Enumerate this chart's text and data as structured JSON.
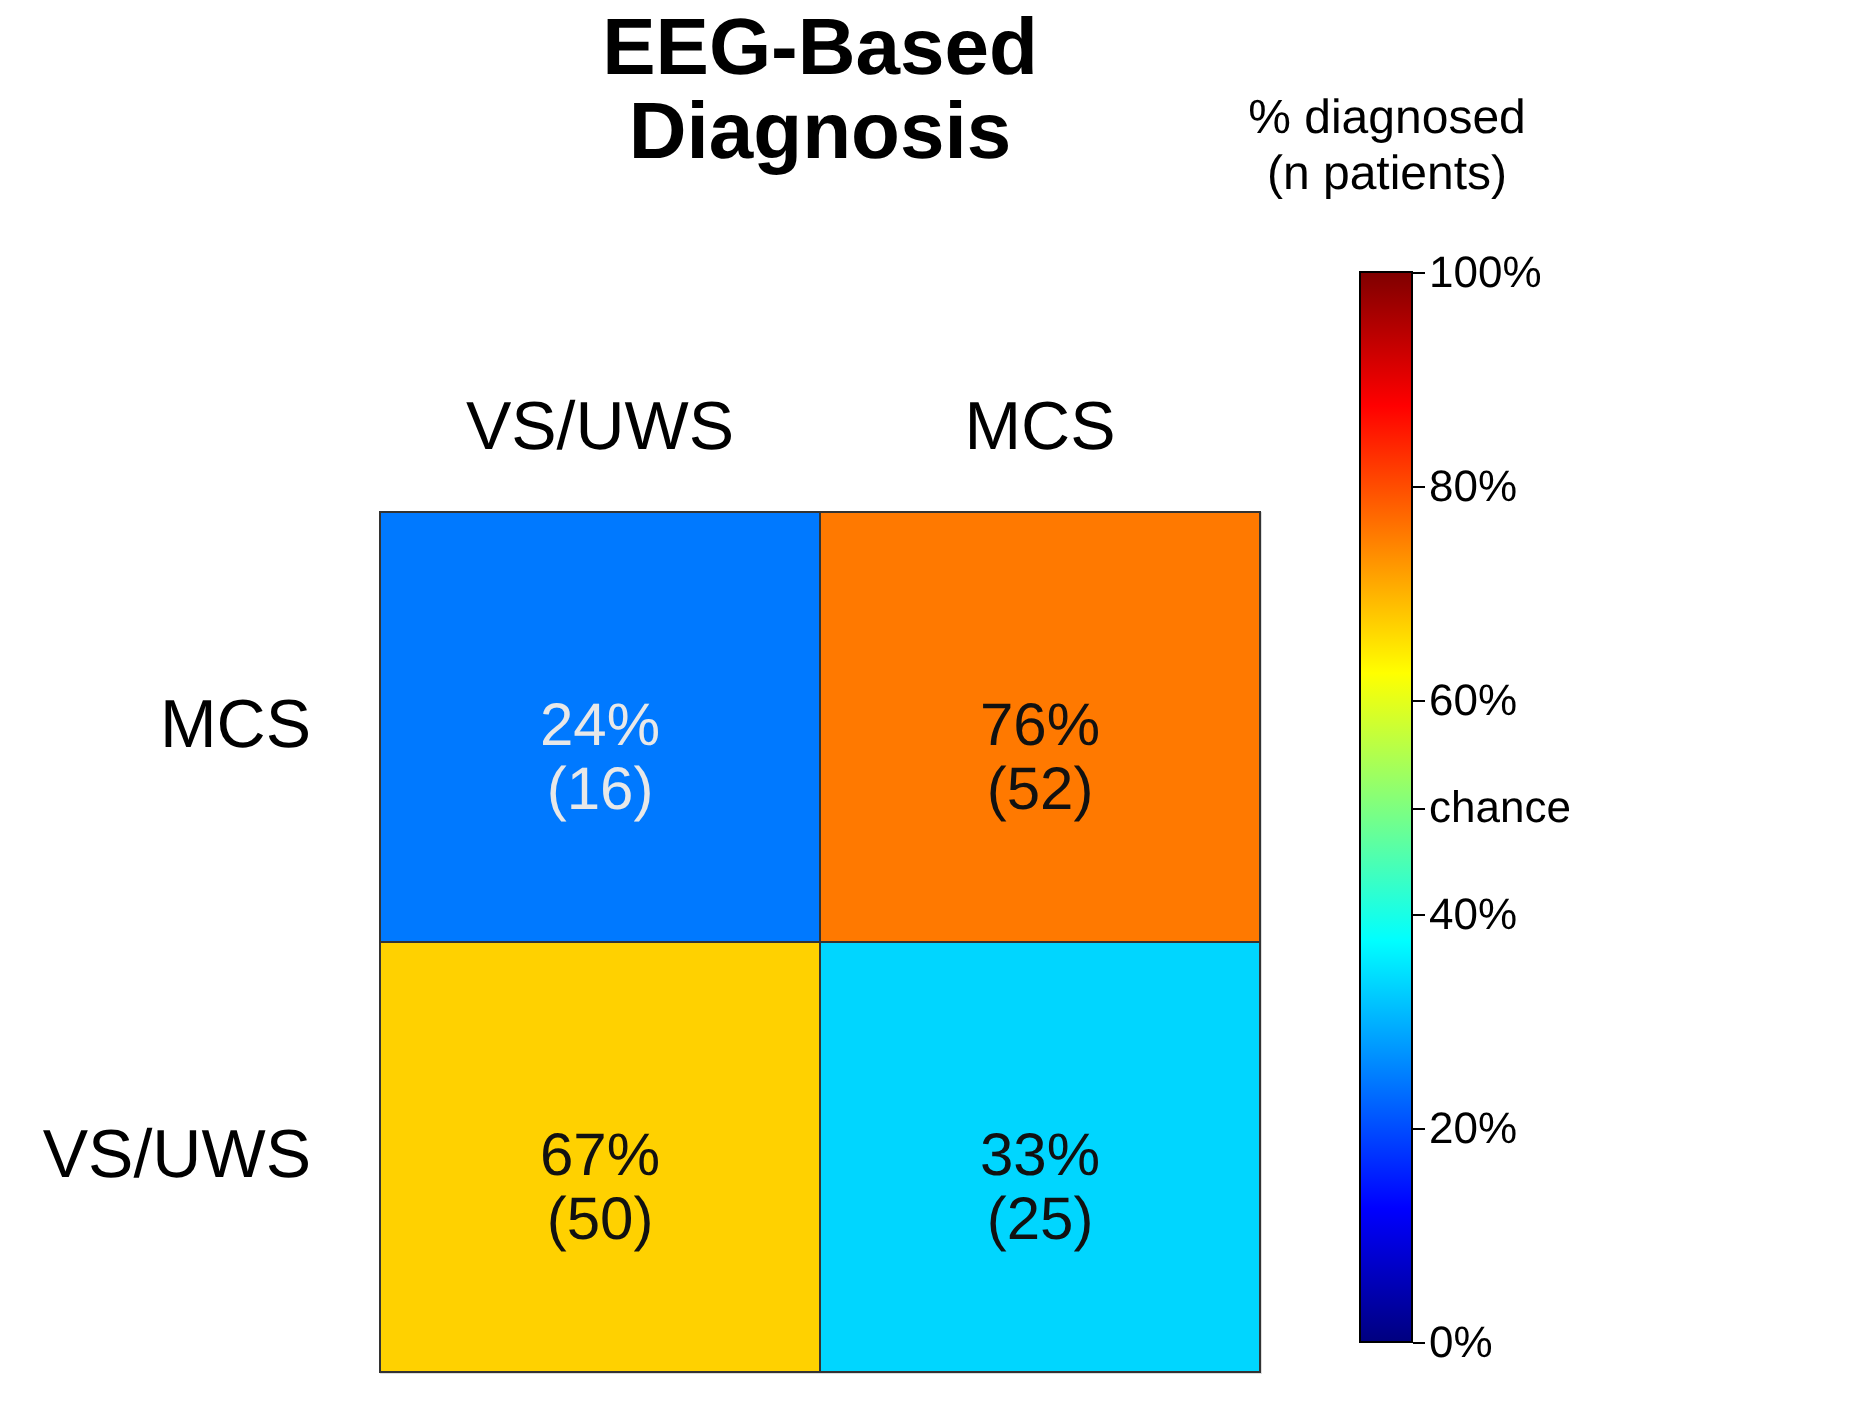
{
  "chart_data": {
    "type": "heatmap",
    "title": "EEG-Based\nDiagnosis",
    "legend_title": "% diagnosed\n(n patients)",
    "categories": [
      "VS/UWS",
      "MCS"
    ],
    "y_categories": [
      "MCS",
      "VS/UWS"
    ],
    "cells": [
      [
        24,
        76
      ],
      [
        67,
        33
      ]
    ],
    "cell_labels": [
      [
        "24%\n(16)",
        "76%\n(52)"
      ],
      [
        "67%\n(50)",
        "33%\n(25)"
      ]
    ],
    "clim": [
      0,
      100
    ],
    "cticks": [
      {
        "value": 0,
        "label": "0%"
      },
      {
        "value": 20,
        "label": "20%"
      },
      {
        "value": 40,
        "label": "40%"
      },
      {
        "value": 50,
        "label": "chance"
      },
      {
        "value": 60,
        "label": "60%"
      },
      {
        "value": 80,
        "label": "80%"
      },
      {
        "value": 100,
        "label": "100%"
      }
    ],
    "grid": false
  }
}
